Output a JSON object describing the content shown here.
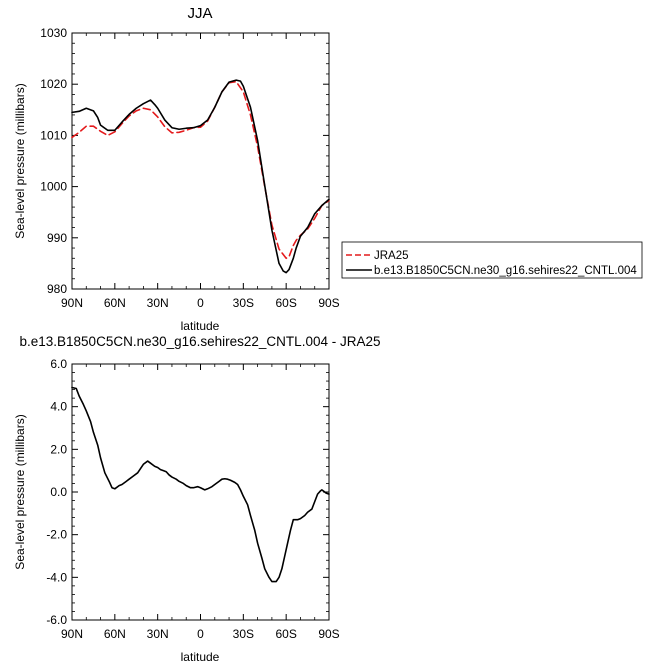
{
  "chart_data": [
    {
      "type": "line",
      "title": "JJA",
      "xlabel": "latitude",
      "ylabel": "Sea-level pressure (millibars)",
      "xlim": [
        -90,
        90
      ],
      "ylim": [
        980,
        1030
      ],
      "x_tick_values": [
        -90,
        -60,
        -30,
        0,
        30,
        60,
        90
      ],
      "x_tick_labels": [
        "90N",
        "60N",
        "30N",
        "0",
        "30S",
        "60S",
        "90S"
      ],
      "y_tick_values": [
        980,
        990,
        1000,
        1010,
        1020,
        1030
      ],
      "y_tick_labels": [
        "980",
        "990",
        "1000",
        "1010",
        "1020",
        "1030"
      ],
      "grid": false,
      "legend_position": "right",
      "series": [
        {
          "name": "JRA25",
          "color": "#e41a1c",
          "dash": "dashed",
          "x": [
            -90,
            -85,
            -80,
            -75,
            -70,
            -65,
            -60,
            -55,
            -50,
            -45,
            -40,
            -35,
            -30,
            -25,
            -20,
            -15,
            -10,
            -5,
            0,
            5,
            10,
            15,
            20,
            25,
            30,
            35,
            40,
            45,
            50,
            55,
            60,
            62,
            65,
            67,
            70,
            75,
            80,
            85,
            90
          ],
          "values": [
            1009.6,
            1010.6,
            1011.8,
            1011.8,
            1010.8,
            1010.0,
            1010.7,
            1012.3,
            1013.8,
            1014.8,
            1015.3,
            1015.0,
            1013.6,
            1011.7,
            1010.5,
            1010.6,
            1011.0,
            1011.5,
            1011.6,
            1012.8,
            1015.5,
            1018.5,
            1020.3,
            1020.5,
            1018.5,
            1014.0,
            1007.8,
            1000.0,
            992.5,
            987.8,
            986.0,
            986.3,
            988.5,
            989.5,
            990.5,
            991.7,
            993.8,
            996.3,
            997.3
          ]
        },
        {
          "name": "b.e13.B1850C5CN.ne30_g16.sehires22_CNTL.004",
          "color": "#000000",
          "dash": "solid",
          "x": [
            -90,
            -85,
            -80,
            -75,
            -72,
            -70,
            -65,
            -60,
            -55,
            -50,
            -45,
            -40,
            -35,
            -32,
            -30,
            -25,
            -20,
            -15,
            -10,
            -5,
            0,
            5,
            10,
            15,
            20,
            25,
            28,
            30,
            35,
            40,
            45,
            50,
            55,
            58,
            60,
            62,
            65,
            67,
            70,
            75,
            80,
            85,
            90
          ],
          "values": [
            1014.5,
            1014.7,
            1015.3,
            1014.8,
            1013.5,
            1012.0,
            1011.0,
            1011.0,
            1012.6,
            1014.1,
            1015.3,
            1016.2,
            1016.9,
            1016.0,
            1015.3,
            1013.0,
            1011.5,
            1011.2,
            1011.4,
            1011.5,
            1011.9,
            1013.0,
            1015.5,
            1018.5,
            1020.4,
            1020.8,
            1020.6,
            1019.6,
            1015.5,
            1009.0,
            1000.2,
            991.5,
            985.0,
            983.5,
            983.2,
            983.8,
            986.0,
            988.0,
            990.3,
            992.0,
            994.7,
            996.3,
            997.5
          ]
        }
      ]
    },
    {
      "type": "line",
      "title": "b.e13.B1850C5CN.ne30_g16.sehires22_CNTL.004 - JRA25",
      "xlabel": "latitude",
      "ylabel": "Sea-level pressure (millibars)",
      "xlim": [
        -90,
        90
      ],
      "ylim": [
        -6,
        6
      ],
      "x_tick_values": [
        -90,
        -60,
        -30,
        0,
        30,
        60,
        90
      ],
      "x_tick_labels": [
        "90N",
        "60N",
        "30N",
        "0",
        "30S",
        "60S",
        "90S"
      ],
      "y_tick_values": [
        -6,
        -4,
        -2,
        0,
        2,
        4,
        6
      ],
      "y_tick_labels": [
        "-6.0",
        "-4.0",
        "-2.0",
        "0.0",
        "2.0",
        "4.0",
        "6.0"
      ],
      "grid": false,
      "series": [
        {
          "color": "#000000",
          "dash": "solid",
          "x": [
            -90,
            -87,
            -85,
            -82,
            -80,
            -77,
            -75,
            -72,
            -70,
            -67,
            -64,
            -62,
            -60,
            -57,
            -55,
            -52,
            -50,
            -47,
            -44,
            -42,
            -40,
            -37,
            -35,
            -32,
            -30,
            -28,
            -26,
            -24,
            -22,
            -20,
            -17,
            -15,
            -12,
            -10,
            -7,
            -5,
            -2,
            0,
            3,
            5,
            8,
            10,
            13,
            15,
            17,
            19,
            21,
            24,
            26,
            28,
            30,
            33,
            35,
            38,
            40,
            43,
            45,
            48,
            50,
            53,
            55,
            57,
            59,
            61,
            63,
            65,
            67,
            68,
            70,
            73,
            75,
            78,
            80,
            82,
            84,
            85,
            86,
            88,
            90
          ],
          "values": [
            4.9,
            4.85,
            4.5,
            4.1,
            3.8,
            3.3,
            2.8,
            2.2,
            1.6,
            0.9,
            0.5,
            0.2,
            0.15,
            0.3,
            0.35,
            0.5,
            0.6,
            0.75,
            0.9,
            1.1,
            1.3,
            1.45,
            1.35,
            1.2,
            1.15,
            1.05,
            1.0,
            0.95,
            0.8,
            0.7,
            0.6,
            0.5,
            0.4,
            0.3,
            0.2,
            0.2,
            0.25,
            0.2,
            0.1,
            0.15,
            0.25,
            0.35,
            0.5,
            0.6,
            0.62,
            0.6,
            0.55,
            0.45,
            0.35,
            0.1,
            -0.2,
            -0.6,
            -1.1,
            -1.8,
            -2.4,
            -3.1,
            -3.6,
            -4.0,
            -4.2,
            -4.2,
            -4.0,
            -3.6,
            -3.0,
            -2.4,
            -1.8,
            -1.3,
            -1.3,
            -1.3,
            -1.25,
            -1.1,
            -0.95,
            -0.8,
            -0.45,
            -0.1,
            0.05,
            0.1,
            0.05,
            -0.05,
            -0.1
          ]
        }
      ]
    }
  ]
}
